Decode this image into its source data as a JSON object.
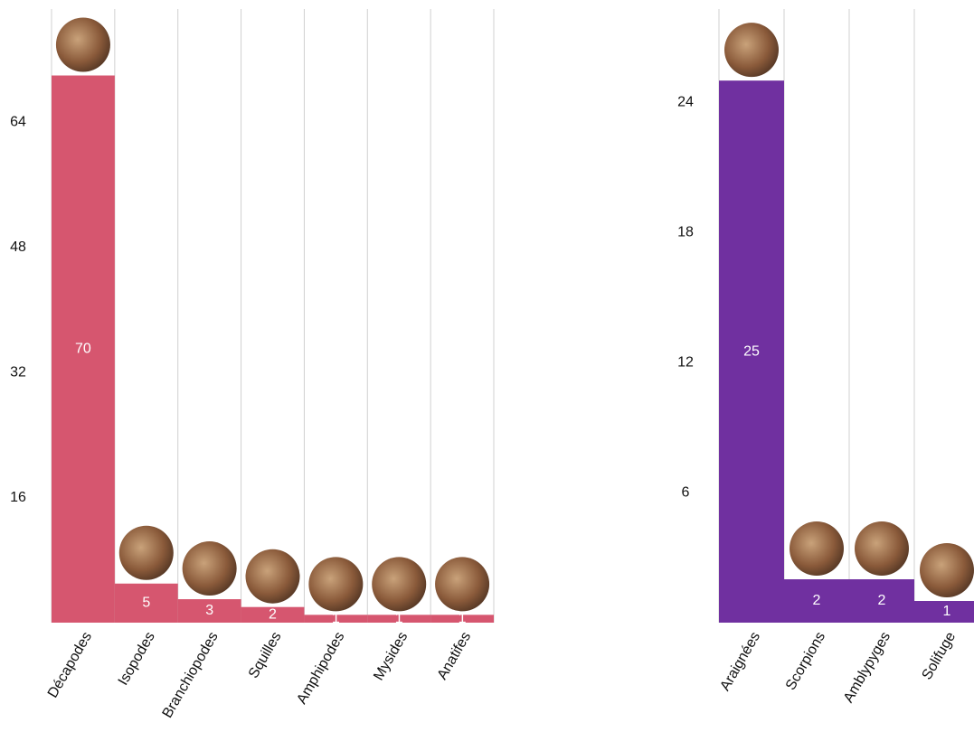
{
  "chart_data": [
    {
      "type": "bar",
      "categories": [
        "Décapodes",
        "Isopodes",
        "Branchiopodes",
        "Squilles",
        "Amphipodes",
        "Mysides",
        "Anatifes"
      ],
      "values": [
        70,
        5,
        3,
        2,
        1,
        1,
        1
      ],
      "color": "#d6566f",
      "ylim": [
        0,
        78.5
      ],
      "yticks": [
        16,
        32,
        48,
        64
      ]
    },
    {
      "type": "bar",
      "categories": [
        "Araignées",
        "Scorpions",
        "Amblypyges",
        "Solifuge"
      ],
      "values": [
        25,
        2,
        2,
        1
      ],
      "color": "#7030a0",
      "ylim": [
        0,
        28.3
      ],
      "yticks": [
        6,
        12,
        18,
        24
      ]
    }
  ]
}
